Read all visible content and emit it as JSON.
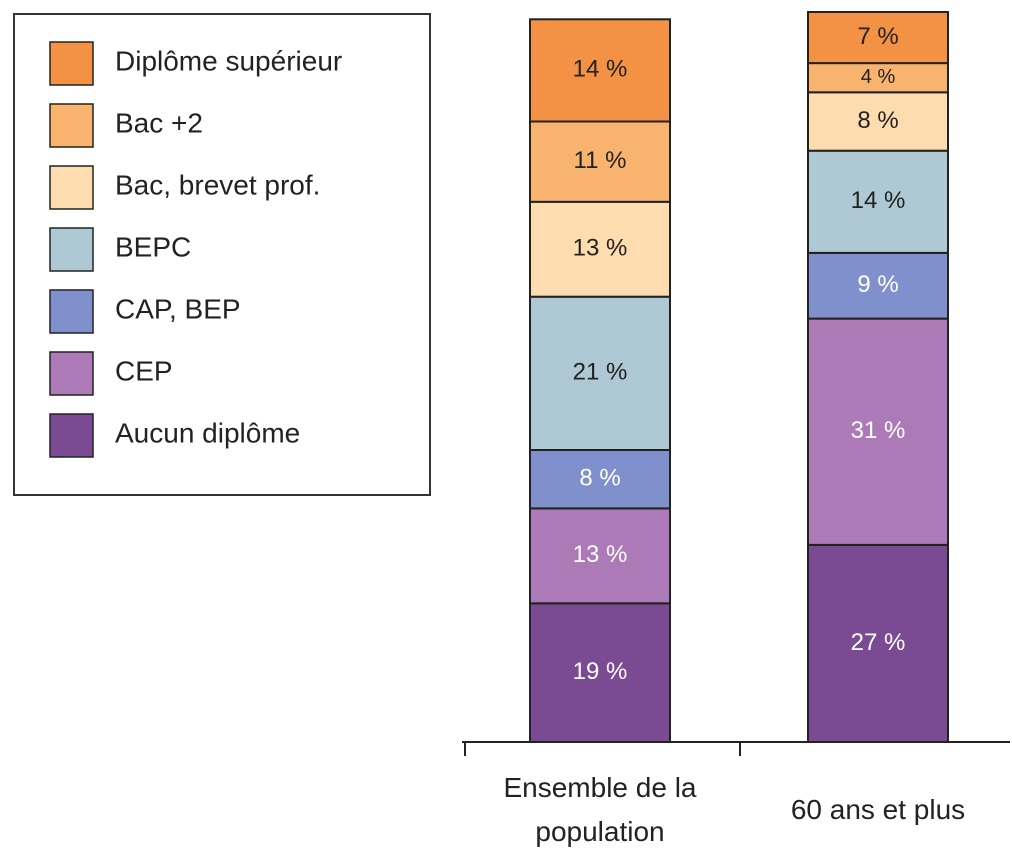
{
  "chart_data": {
    "type": "stacked_bar",
    "categories": [
      "Ensemble de la population",
      "60 ans et plus"
    ],
    "series": [
      {
        "name": "Aucun diplôme",
        "color": "#7a4a92",
        "values": [
          19,
          27
        ],
        "value_labels": [
          "19 %",
          "27 %"
        ]
      },
      {
        "name": "CEP",
        "color": "#ad7ab8",
        "values": [
          13,
          31
        ],
        "value_labels": [
          "13 %",
          "31 %"
        ]
      },
      {
        "name": "CAP, BEP",
        "color": "#8090cc",
        "values": [
          8,
          9
        ],
        "value_labels": [
          "8 %",
          "9 %"
        ]
      },
      {
        "name": "BEPC",
        "color": "#aec8d4",
        "values": [
          21,
          14
        ],
        "value_labels": [
          "21 %",
          "14 %"
        ]
      },
      {
        "name": "Bac, brevet prof.",
        "color": "#fddcb0",
        "values": [
          13,
          8
        ],
        "value_labels": [
          "13 %",
          "8 %"
        ]
      },
      {
        "name": "Bac +2",
        "color": "#f8b36e",
        "values": [
          11,
          4
        ],
        "value_labels": [
          "11 %",
          "4 %"
        ]
      },
      {
        "name": "Diplôme supérieur",
        "color": "#f39145",
        "values": [
          14,
          7
        ],
        "value_labels": [
          "14 %",
          "7 %"
        ]
      }
    ],
    "ylim": [
      0,
      100
    ],
    "legend": "top-left"
  }
}
